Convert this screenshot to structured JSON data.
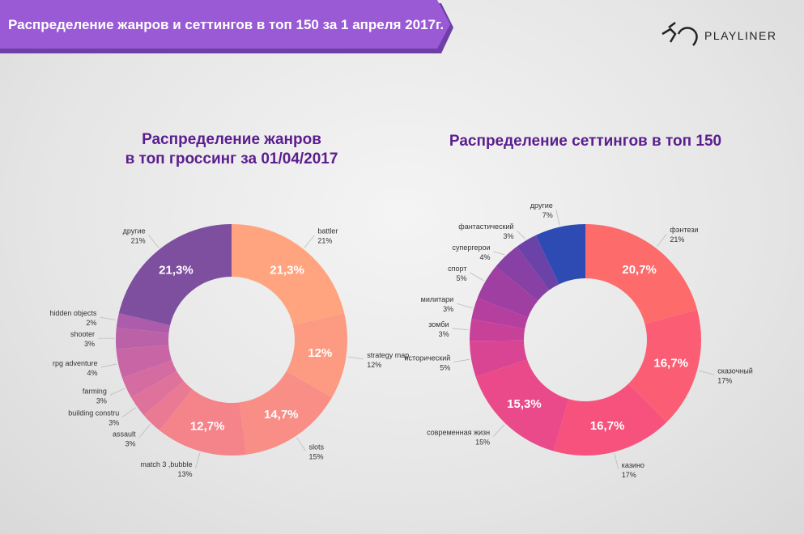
{
  "header": {
    "title": "Распределение жанров и сеттингов в топ 150 за 1 апреля 2017г.",
    "logo": "PLAYLINER"
  },
  "chart_data": [
    {
      "type": "donut",
      "title": [
        "Распределение жанров",
        "в топ гроссинг за 01/04/2017"
      ],
      "categories": [
        "battler",
        "strategy map",
        "slots",
        "match 3 ,bubble",
        "assault",
        "building constru",
        "farming",
        "rpg adventure",
        "shooter",
        "hidden objects",
        "другие"
      ],
      "values": [
        21.3,
        12,
        14.7,
        12.7,
        3,
        3,
        3,
        4,
        3,
        2,
        21.3
      ],
      "value_labels": [
        "21,3%",
        "12%",
        "14,7%",
        "12,7%",
        null,
        null,
        null,
        null,
        null,
        null,
        "21,3%"
      ],
      "outer_labels": [
        "21%",
        "12%",
        "15%",
        "13%",
        "3%",
        "3%",
        "3%",
        "4%",
        "3%",
        "2%",
        "21%"
      ],
      "colors": [
        "#ffa47f",
        "#fd9a82",
        "#f98e86",
        "#f4838a",
        "#ea7a94",
        "#df729b",
        "#d46ba1",
        "#c866a5",
        "#bb61a8",
        "#ac5caa",
        "#7e4f9f"
      ]
    },
    {
      "type": "donut",
      "title": [
        "Распределение сеттингов в топ 150"
      ],
      "categories": [
        "фэнтези",
        "сказочный",
        "казино",
        "современная жизн",
        "исторический",
        "зомби",
        "милитари",
        "спорт",
        "супергерои",
        "фантастический",
        "другие"
      ],
      "values": [
        20.7,
        16.7,
        16.7,
        15.3,
        5,
        3,
        3,
        5,
        4,
        3,
        7
      ],
      "value_labels": [
        "20,7%",
        "16,7%",
        "16,7%",
        "15,3%",
        null,
        null,
        null,
        null,
        null,
        null,
        null
      ],
      "outer_labels": [
        "21%",
        "17%",
        "17%",
        "15%",
        "5%",
        "3%",
        "3%",
        "5%",
        "4%",
        "3%",
        "7%"
      ],
      "colors": [
        "#fe6b6b",
        "#fb5e74",
        "#f6527d",
        "#ea4a8a",
        "#da4593",
        "#c84199",
        "#b43f9e",
        "#9f3fa2",
        "#8840a5",
        "#6b42a8",
        "#2d4bb3"
      ]
    }
  ]
}
